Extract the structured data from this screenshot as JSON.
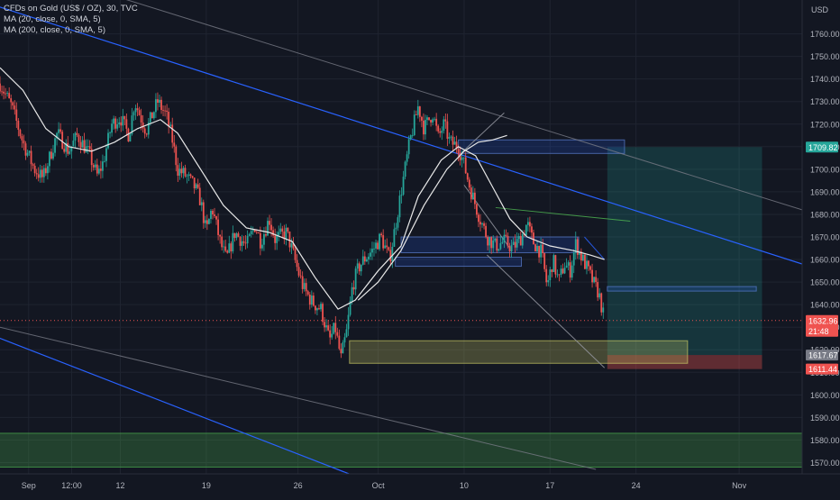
{
  "header": {
    "title": "CFDs on Gold (US$ / OZ), 30, TVC",
    "indicators": [
      "MA (20, close, 0, SMA, 5)",
      "MA (200, close, 0, SMA, 5)"
    ]
  },
  "colors": {
    "background": "#131722",
    "grid": "#1f2430",
    "up": "#26a69a",
    "down": "#ef5350",
    "ma": "#e8e8e8",
    "trend_blue": "#2962ff",
    "trend_gray": "#787b86",
    "target_zone": "#26a69a",
    "stop_zone": "#ef5350",
    "demand_zone": "#4caf50",
    "yellow_zone": "#c8c864",
    "box_blue": "#2962ff"
  },
  "chart_data": {
    "type": "candlestick",
    "instrument": "CFDs on Gold (US$ / OZ)",
    "interval": "30",
    "source": "TVC",
    "y_axis": {
      "currency": "USD",
      "range": [
        1565,
        1775
      ],
      "ticks": [
        1570,
        1580,
        1590,
        1600,
        1610,
        1620,
        1630,
        1640,
        1650,
        1660,
        1670,
        1680,
        1690,
        1700,
        1710,
        1720,
        1730,
        1740,
        1750,
        1760
      ]
    },
    "x_axis": {
      "labels": [
        {
          "text": "Sep",
          "t": 0.5
        },
        {
          "text": "12:00",
          "t": 1.25
        },
        {
          "text": "12",
          "t": 2.1
        },
        {
          "text": "19",
          "t": 3.6
        },
        {
          "text": "26",
          "t": 5.2
        },
        {
          "text": "Oct",
          "t": 6.6
        },
        {
          "text": "10",
          "t": 8.1
        },
        {
          "text": "17",
          "t": 9.6
        },
        {
          "text": "24",
          "t": 11.1
        },
        {
          "text": "Nov",
          "t": 12.9
        }
      ],
      "range": [
        0,
        14
      ]
    },
    "price_path": [
      [
        0.0,
        1738
      ],
      [
        0.2,
        1728
      ],
      [
        0.4,
        1712
      ],
      [
        0.6,
        1700
      ],
      [
        0.75,
        1696
      ],
      [
        0.9,
        1708
      ],
      [
        1.0,
        1716
      ],
      [
        1.2,
        1708
      ],
      [
        1.35,
        1715
      ],
      [
        1.55,
        1707
      ],
      [
        1.7,
        1697
      ],
      [
        1.8,
        1703
      ],
      [
        1.95,
        1720
      ],
      [
        2.1,
        1723
      ],
      [
        2.25,
        1715
      ],
      [
        2.35,
        1730
      ],
      [
        2.55,
        1717
      ],
      [
        2.75,
        1730
      ],
      [
        2.9,
        1724
      ],
      [
        3.0,
        1714
      ],
      [
        3.1,
        1700
      ],
      [
        3.25,
        1697
      ],
      [
        3.4,
        1692
      ],
      [
        3.5,
        1686
      ],
      [
        3.6,
        1672
      ],
      [
        3.7,
        1683
      ],
      [
        3.85,
        1667
      ],
      [
        3.95,
        1660
      ],
      [
        4.1,
        1672
      ],
      [
        4.3,
        1666
      ],
      [
        4.45,
        1675
      ],
      [
        4.55,
        1668
      ],
      [
        4.7,
        1678
      ],
      [
        4.8,
        1669
      ],
      [
        5.0,
        1672
      ],
      [
        5.1,
        1664
      ],
      [
        5.2,
        1655
      ],
      [
        5.3,
        1647
      ],
      [
        5.45,
        1641
      ],
      [
        5.6,
        1638
      ],
      [
        5.75,
        1624
      ],
      [
        5.85,
        1630
      ],
      [
        5.95,
        1616
      ],
      [
        6.05,
        1628
      ],
      [
        6.15,
        1648
      ],
      [
        6.25,
        1656
      ],
      [
        6.35,
        1660
      ],
      [
        6.5,
        1664
      ],
      [
        6.65,
        1670
      ],
      [
        6.8,
        1660
      ],
      [
        7.0,
        1690
      ],
      [
        7.15,
        1712
      ],
      [
        7.3,
        1728
      ],
      [
        7.4,
        1718
      ],
      [
        7.55,
        1725
      ],
      [
        7.65,
        1714
      ],
      [
        7.75,
        1720
      ],
      [
        7.85,
        1712
      ],
      [
        8.0,
        1710
      ],
      [
        8.1,
        1702
      ],
      [
        8.2,
        1692
      ],
      [
        8.35,
        1680
      ],
      [
        8.5,
        1670
      ],
      [
        8.65,
        1666
      ],
      [
        8.8,
        1668
      ],
      [
        8.95,
        1665
      ],
      [
        9.1,
        1670
      ],
      [
        9.2,
        1676
      ],
      [
        9.3,
        1668
      ],
      [
        9.45,
        1663
      ],
      [
        9.55,
        1648
      ],
      [
        9.65,
        1660
      ],
      [
        9.75,
        1650
      ],
      [
        9.85,
        1658
      ],
      [
        9.95,
        1655
      ],
      [
        10.05,
        1667
      ],
      [
        10.15,
        1661
      ],
      [
        10.25,
        1656
      ],
      [
        10.35,
        1650
      ],
      [
        10.45,
        1645
      ],
      [
        10.55,
        1633
      ]
    ],
    "ma20": [
      [
        0.0,
        1745
      ],
      [
        0.4,
        1735
      ],
      [
        0.8,
        1718
      ],
      [
        1.2,
        1710
      ],
      [
        1.6,
        1708
      ],
      [
        2.0,
        1712
      ],
      [
        2.4,
        1718
      ],
      [
        2.8,
        1722
      ],
      [
        3.1,
        1716
      ],
      [
        3.5,
        1700
      ],
      [
        3.9,
        1684
      ],
      [
        4.3,
        1674
      ],
      [
        4.7,
        1672
      ],
      [
        5.1,
        1668
      ],
      [
        5.5,
        1652
      ],
      [
        5.9,
        1638
      ],
      [
        6.2,
        1642
      ],
      [
        6.6,
        1655
      ],
      [
        7.0,
        1666
      ],
      [
        7.3,
        1688
      ],
      [
        7.7,
        1704
      ],
      [
        8.0,
        1710
      ],
      [
        8.3,
        1706
      ],
      [
        8.6,
        1692
      ],
      [
        8.9,
        1678
      ],
      [
        9.2,
        1670
      ],
      [
        9.6,
        1666
      ],
      [
        10.0,
        1664
      ],
      [
        10.3,
        1662
      ],
      [
        10.55,
        1660
      ]
    ],
    "ma200": [
      [
        6.25,
        1642
      ],
      [
        6.6,
        1650
      ],
      [
        7.0,
        1664
      ],
      [
        7.4,
        1684
      ],
      [
        7.8,
        1700
      ],
      [
        8.1,
        1708
      ],
      [
        8.35,
        1712
      ],
      [
        8.6,
        1713
      ],
      [
        8.85,
        1715
      ]
    ],
    "drawings": {
      "blue_trend_upper": [
        [
          -1,
          1780
        ],
        [
          14,
          1658
        ]
      ],
      "gray_trend_upper": [
        [
          2.1,
          1776
        ],
        [
          14,
          1682
        ]
      ],
      "blue_trend_lower": [
        [
          -0.5,
          1630
        ],
        [
          6.6,
          1560
        ]
      ],
      "gray_trend_lower": [
        [
          -0.5,
          1633
        ],
        [
          10.4,
          1567
        ]
      ],
      "target_zone": {
        "x0": 10.6,
        "x1": 13.3,
        "y0": 1617.67,
        "y1": 1709.82
      },
      "stop_zone": {
        "x0": 10.6,
        "x1": 13.3,
        "y0": 1611.44,
        "y1": 1617.67
      },
      "demand_zone": {
        "x0": -1,
        "x1": 14,
        "y0": 1568,
        "y1": 1583
      },
      "yellow_zone": {
        "x0": 6.1,
        "x1": 12.0,
        "y0": 1614,
        "y1": 1624
      },
      "boxes": [
        {
          "x0": 8.0,
          "x1": 10.9,
          "y0": 1707,
          "y1": 1713
        },
        {
          "x0": 7.0,
          "x1": 10.1,
          "y0": 1663,
          "y1": 1670
        },
        {
          "x0": 6.9,
          "x1": 9.1,
          "y0": 1657,
          "y1": 1661
        },
        {
          "x0": 10.6,
          "x1": 13.2,
          "y0": 1646,
          "y1": 1648
        }
      ],
      "thin_lines": [
        {
          "pts": [
            [
              8.0,
              1706
            ],
            [
              8.8,
              1725
            ]
          ],
          "color": "#9598a1"
        },
        {
          "pts": [
            [
              8.65,
              1683
            ],
            [
              11.0,
              1677
            ]
          ],
          "color": "#4caf50"
        },
        {
          "pts": [
            [
              8.5,
              1662
            ],
            [
              10.55,
              1612
            ]
          ],
          "color": "#9598a1"
        },
        {
          "pts": [
            [
              10.2,
              1670
            ],
            [
              10.55,
              1660
            ]
          ],
          "color": "#2962ff"
        },
        {
          "pts": [
            [
              8.1,
              1693
            ],
            [
              8.9,
              1665
            ]
          ],
          "color": "#9598a1"
        }
      ]
    },
    "price_labels": [
      {
        "value": "1709.82",
        "price": 1709.82,
        "color": "#26a69a"
      },
      {
        "value": "1632.96",
        "price": 1632.96,
        "color": "#ef5350",
        "sub": "21:48"
      },
      {
        "value": "1617.67",
        "price": 1617.67,
        "color": "#787b86"
      },
      {
        "value": "1611.44",
        "price": 1611.44,
        "color": "#ef5350"
      }
    ],
    "current_price": 1632.96
  }
}
